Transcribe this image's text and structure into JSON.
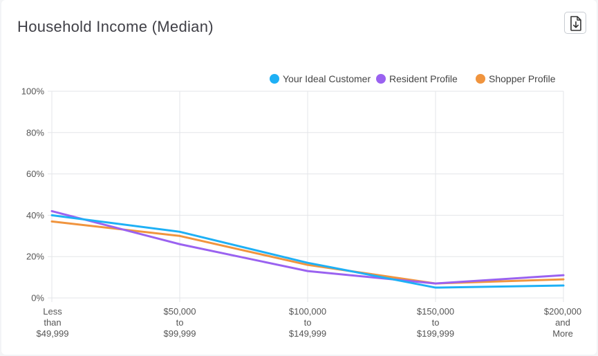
{
  "title": "Household Income (Median)",
  "icons": {
    "download": "download-file-icon"
  },
  "chart_data": {
    "type": "line",
    "categories": [
      [
        "Less",
        "than",
        "$49,999"
      ],
      [
        "$50,000",
        "to",
        "$99,999"
      ],
      [
        "$100,000",
        "to",
        "$149,999"
      ],
      [
        "$150,000",
        "to",
        "$199,999"
      ],
      [
        "$200,000",
        "and",
        "More"
      ]
    ],
    "ylim": [
      0,
      100
    ],
    "yticks": [
      "0%",
      "20%",
      "40%",
      "60%",
      "80%",
      "100%"
    ],
    "ytick_values": [
      0,
      20,
      40,
      60,
      80,
      100
    ],
    "grid": true,
    "legend_position": "top-right",
    "series": [
      {
        "name": "Your Ideal Customer",
        "color": "#1eb0f5",
        "values": [
          40,
          32,
          17,
          5,
          6
        ]
      },
      {
        "name": "Resident Profile",
        "color": "#9a62f0",
        "values": [
          42,
          26,
          13,
          7,
          11
        ]
      },
      {
        "name": "Shopper Profile",
        "color": "#f0943e",
        "values": [
          37,
          30,
          16,
          7,
          9
        ]
      }
    ]
  }
}
